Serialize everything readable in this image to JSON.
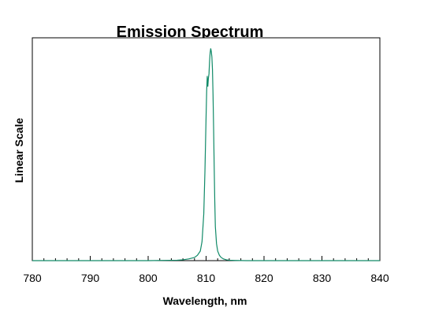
{
  "chart_data": {
    "type": "line",
    "title": "Emission Spectrum",
    "xlabel": "Wavelength, nm",
    "ylabel": "Linear Scale",
    "xlim": [
      780,
      840
    ],
    "ylim": [
      0,
      1.05
    ],
    "x_ticks": [
      780,
      790,
      800,
      810,
      820,
      830,
      840
    ],
    "x_tick_labels": [
      "780",
      "790",
      "800",
      "810",
      "820",
      "830",
      "840"
    ],
    "grid": false,
    "legend": "none",
    "series": [
      {
        "color": "#118a68",
        "x": [
          780,
          790,
          800,
          805,
          806,
          807,
          808,
          808.5,
          809,
          809.3,
          809.6,
          809.8,
          810,
          810.1,
          810.2,
          810.3,
          810.4,
          810.5,
          810.6,
          810.7,
          810.8,
          810.9,
          811,
          811.1,
          811.2,
          811.3,
          811.4,
          811.5,
          811.6,
          811.8,
          812,
          812.3,
          812.6,
          813,
          813.5,
          814,
          815,
          817,
          820,
          830,
          840
        ],
        "y": [
          0,
          0,
          0,
          0.002,
          0.004,
          0.008,
          0.015,
          0.025,
          0.045,
          0.09,
          0.22,
          0.42,
          0.68,
          0.8,
          0.87,
          0.82,
          0.86,
          0.88,
          0.94,
          0.98,
          1.0,
          0.985,
          0.96,
          0.9,
          0.78,
          0.62,
          0.44,
          0.28,
          0.16,
          0.08,
          0.045,
          0.025,
          0.015,
          0.008,
          0.004,
          0.002,
          0.001,
          0,
          0,
          0,
          0
        ]
      }
    ]
  }
}
